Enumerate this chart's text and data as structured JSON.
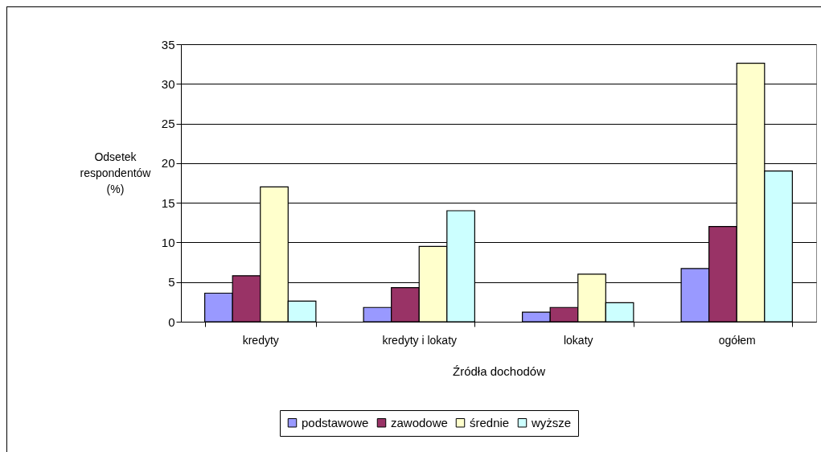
{
  "chart_data": {
    "type": "bar",
    "xlabel": "Źródła dochodów",
    "ylabel": "Odsetek respondentów (%)",
    "categories": [
      "kredyty",
      "kredyty i lokaty",
      "lokaty",
      "ogółem"
    ],
    "series": [
      {
        "name": "podstawowe",
        "color": "#9999ff",
        "values": [
          3.6,
          1.8,
          1.2,
          6.7
        ]
      },
      {
        "name": "zawodowe",
        "color": "#993366",
        "values": [
          5.8,
          4.3,
          1.8,
          12.0
        ]
      },
      {
        "name": "średnie",
        "color": "#ffffcc",
        "values": [
          17.0,
          9.5,
          6.0,
          32.6
        ]
      },
      {
        "name": "wyższe",
        "color": "#ccffff",
        "values": [
          2.6,
          14.0,
          2.4,
          19.0
        ]
      }
    ],
    "ylim": [
      0,
      35
    ],
    "yticks": [
      0,
      5,
      10,
      15,
      20,
      25,
      30,
      35
    ],
    "grid": "y",
    "legend": "bottom"
  }
}
